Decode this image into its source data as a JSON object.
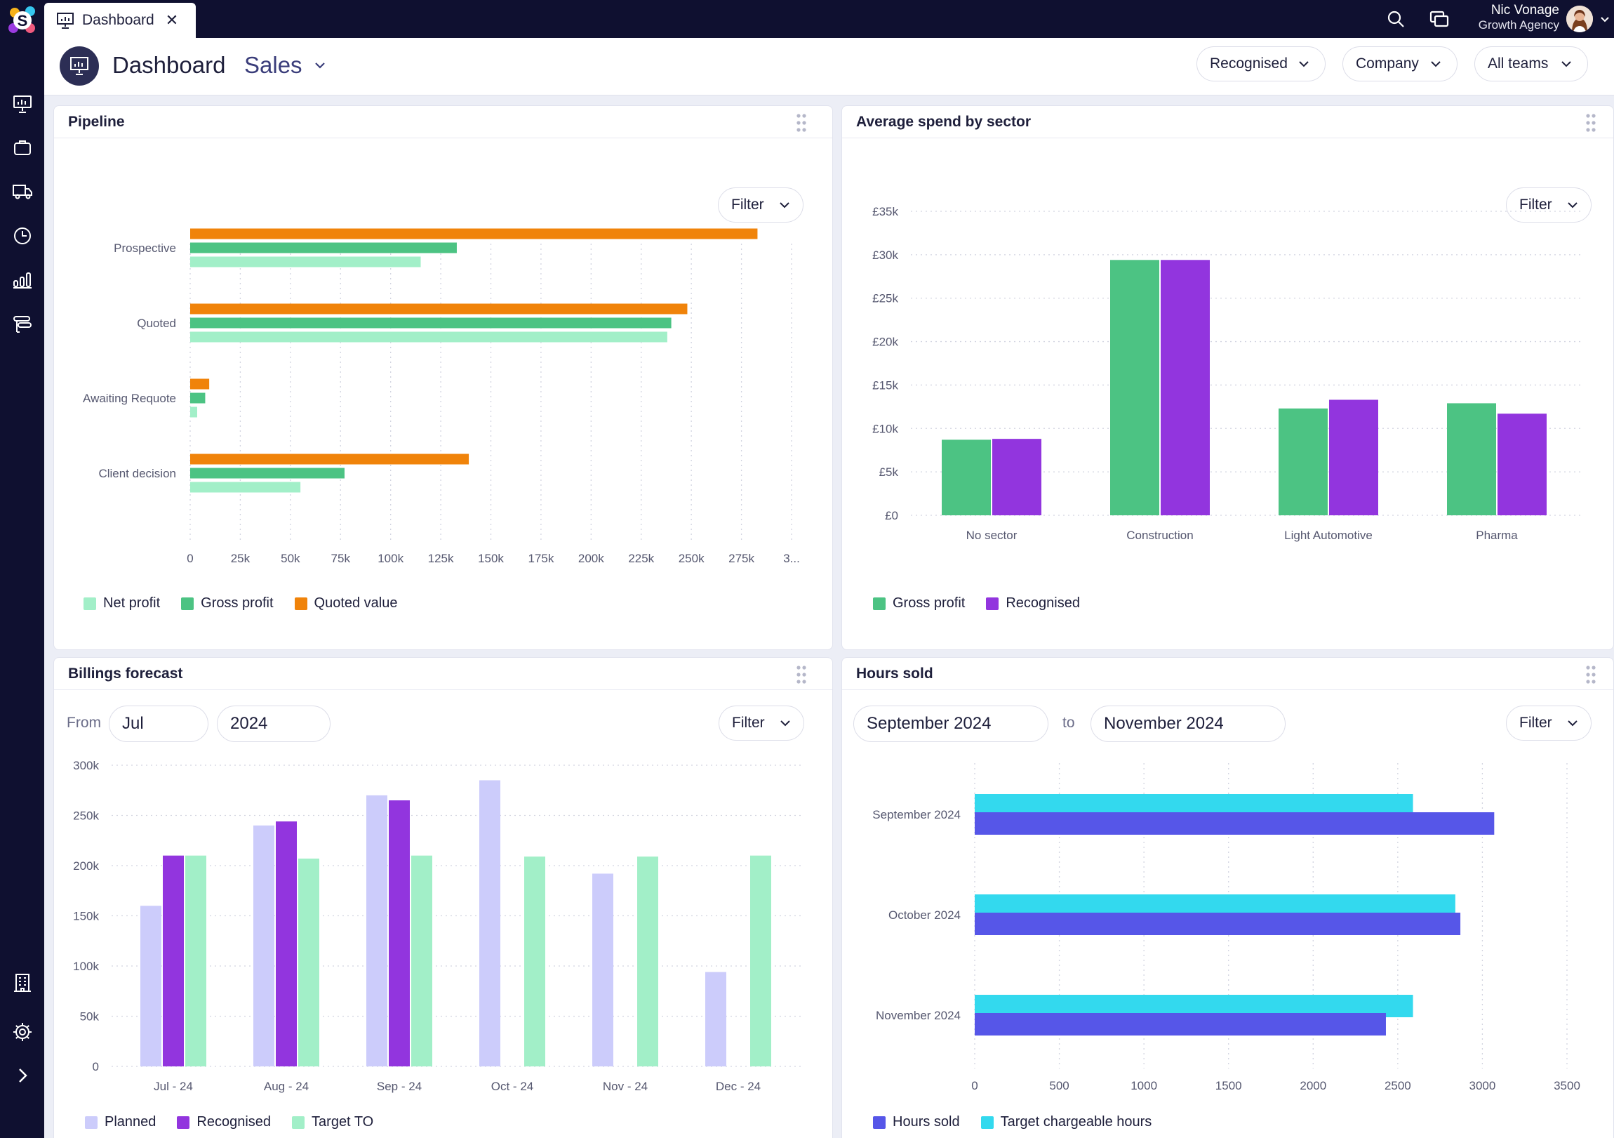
{
  "app": {
    "tab_label": "Dashboard",
    "user_name": "Nic Vonage",
    "user_org": "Growth Agency"
  },
  "header": {
    "title": "Dashboard",
    "subtitle": "Sales",
    "filters": [
      "Recognised",
      "Company",
      "All teams"
    ]
  },
  "sidebar": {
    "icons": [
      "presentation-icon",
      "briefcase-icon",
      "truck-icon",
      "clock-icon",
      "bar-chart-icon",
      "roadmap-icon",
      "building-icon",
      "gear-icon",
      "chevron-right-icon"
    ]
  },
  "colors": {
    "orange": "#f0830a",
    "green": "#4cc383",
    "mint": "#a2efc8",
    "purple": "#9235de",
    "lavender": "#ccccfb",
    "cyan": "#33d9ee",
    "indigo": "#5656e8"
  },
  "panels": {
    "pipeline": {
      "title": "Pipeline",
      "filter_label": "Filter",
      "chart_data": {
        "type": "bar",
        "orientation": "horizontal",
        "categories": [
          "Prospective",
          "Quoted",
          "Awaiting Requote",
          "Client decision"
        ],
        "x_ticks": [
          "0",
          "25k",
          "50k",
          "75k",
          "100k",
          "125k",
          "150k",
          "175k",
          "200k",
          "225k",
          "250k",
          "275k",
          "3..."
        ],
        "xlim": [
          0,
          300000
        ],
        "series": [
          {
            "name": "Quoted value",
            "color": "#f0830a",
            "values": [
              283000,
              248000,
              9500,
              139000
            ]
          },
          {
            "name": "Gross profit",
            "color": "#4cc383",
            "values": [
              133000,
              240000,
              7500,
              77000
            ]
          },
          {
            "name": "Net profit",
            "color": "#a2efc8",
            "values": [
              115000,
              238000,
              3500,
              55000
            ]
          }
        ],
        "legend": [
          "Net profit",
          "Gross profit",
          "Quoted value"
        ],
        "legend_placement": "bottom-left",
        "grid": "vertical dotted"
      }
    },
    "avg_spend": {
      "title": "Average spend by sector",
      "filter_label": "Filter",
      "chart_data": {
        "type": "bar",
        "categories": [
          "No sector",
          "Construction",
          "Light Automotive",
          "Pharma"
        ],
        "y_ticks": [
          "£0",
          "£5k",
          "£10k",
          "£15k",
          "£20k",
          "£25k",
          "£30k",
          "£35k"
        ],
        "ylim": [
          0,
          35000
        ],
        "series": [
          {
            "name": "Gross profit",
            "color": "#4cc383",
            "values": [
              8700,
              29400,
              12300,
              12900
            ]
          },
          {
            "name": "Recognised",
            "color": "#9235de",
            "values": [
              8800,
              29400,
              13300,
              11700
            ]
          }
        ],
        "legend_placement": "bottom-left",
        "grid": "horizontal dotted"
      }
    },
    "billings": {
      "title": "Billings forecast",
      "from_label": "From",
      "month": "Jul",
      "year": "2024",
      "filter_label": "Filter",
      "chart_data": {
        "type": "bar",
        "categories": [
          "Jul - 24",
          "Aug - 24",
          "Sep - 24",
          "Oct - 24",
          "Nov - 24",
          "Dec - 24"
        ],
        "y_ticks": [
          "0",
          "50k",
          "100k",
          "150k",
          "200k",
          "250k",
          "300k"
        ],
        "ylim": [
          0,
          300000
        ],
        "series": [
          {
            "name": "Planned",
            "color": "#ccccfb",
            "values": [
              160000,
              240000,
              270000,
              285000,
              192000,
              94000
            ]
          },
          {
            "name": "Recognised",
            "color": "#9235de",
            "values": [
              210000,
              244000,
              265000,
              0,
              0,
              0
            ]
          },
          {
            "name": "Target TO",
            "color": "#a2efc8",
            "values": [
              210000,
              207000,
              210000,
              209000,
              209000,
              210000
            ]
          }
        ],
        "legend_placement": "bottom-left",
        "grid": "horizontal dotted"
      }
    },
    "hours": {
      "title": "Hours sold",
      "from_value": "September 2024",
      "to_label": "to",
      "to_value": "November 2024",
      "filter_label": "Filter",
      "chart_data": {
        "type": "bar",
        "orientation": "horizontal",
        "categories": [
          "September 2024",
          "October 2024",
          "November 2024"
        ],
        "x_ticks": [
          "0",
          "500",
          "1000",
          "1500",
          "2000",
          "2500",
          "3000",
          "3500"
        ],
        "xlim": [
          0,
          3500
        ],
        "series": [
          {
            "name": "Target chargeable hours",
            "color": "#33d9ee",
            "values": [
              2590,
              2840,
              2590
            ]
          },
          {
            "name": "Hours sold",
            "color": "#5656e8",
            "values": [
              3070,
              2870,
              2430
            ]
          }
        ],
        "legend": [
          "Hours sold",
          "Target chargeable hours"
        ],
        "legend_placement": "bottom-left",
        "grid": "vertical dotted"
      }
    }
  }
}
